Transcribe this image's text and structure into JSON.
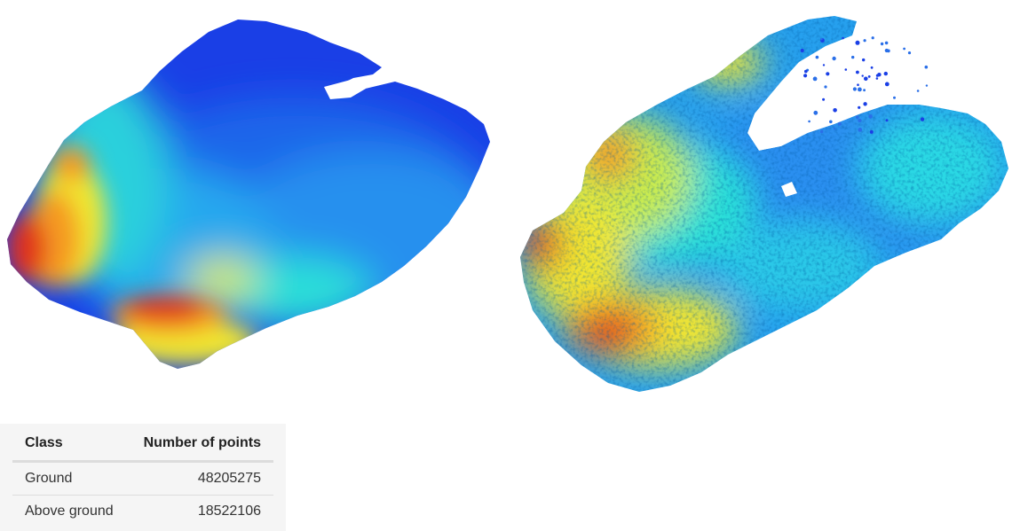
{
  "table": {
    "headers": {
      "class": "Class",
      "points": "Number of points"
    },
    "rows": [
      {
        "class": "Ground",
        "points": "48205275"
      },
      {
        "class": "Above ground",
        "points": "18522106"
      }
    ]
  },
  "colors": {
    "low": "#1a3fe6",
    "mid": "#26b4ee",
    "cyan": "#2ce0d8",
    "yellow": "#f0e630",
    "orange": "#f59a22",
    "high": "#e0301c"
  }
}
